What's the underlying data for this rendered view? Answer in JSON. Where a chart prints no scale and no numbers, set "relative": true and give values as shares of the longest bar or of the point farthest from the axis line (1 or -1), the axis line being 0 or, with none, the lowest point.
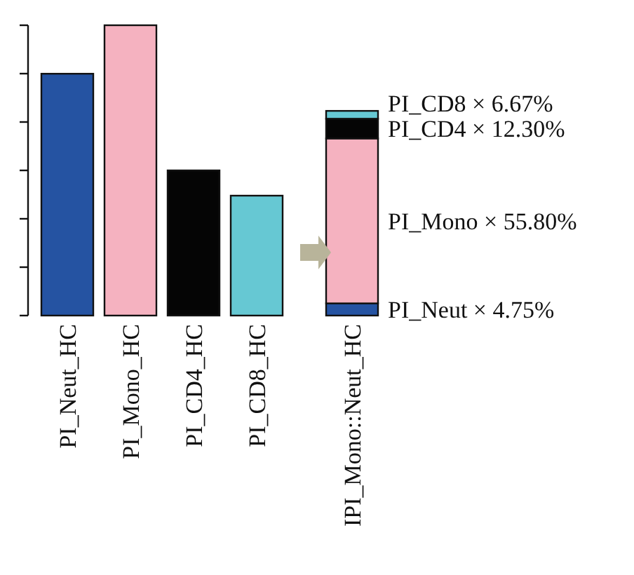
{
  "chart_data": {
    "type": "bar",
    "relative": true,
    "stacked": true,
    "categories": [
      "PI_Neut_HC",
      "PI_Mono_HC",
      "PI_CD4_HC",
      "PI_CD8_HC",
      "IPI_Mono::Neut_HC"
    ],
    "series": [
      {
        "color": "#2553a2",
        "values": [
          0.833,
          null,
          null,
          null,
          0.042
        ]
      },
      {
        "color": "#f5b2c0",
        "values": [
          null,
          1,
          null,
          null,
          0.568
        ]
      },
      {
        "color": "#050505",
        "values": [
          null,
          null,
          0.5,
          null,
          0.068
        ]
      },
      {
        "color": "#66c8d3",
        "values": [
          null,
          null,
          null,
          0.413,
          0.027
        ]
      }
    ],
    "annotations": [
      "PI_Neut × 4.75%",
      "PI_Mono × 55.80%",
      "PI_CD4 × 12.30%",
      "PI_CD8 × 6.67%"
    ],
    "grid": false
  }
}
